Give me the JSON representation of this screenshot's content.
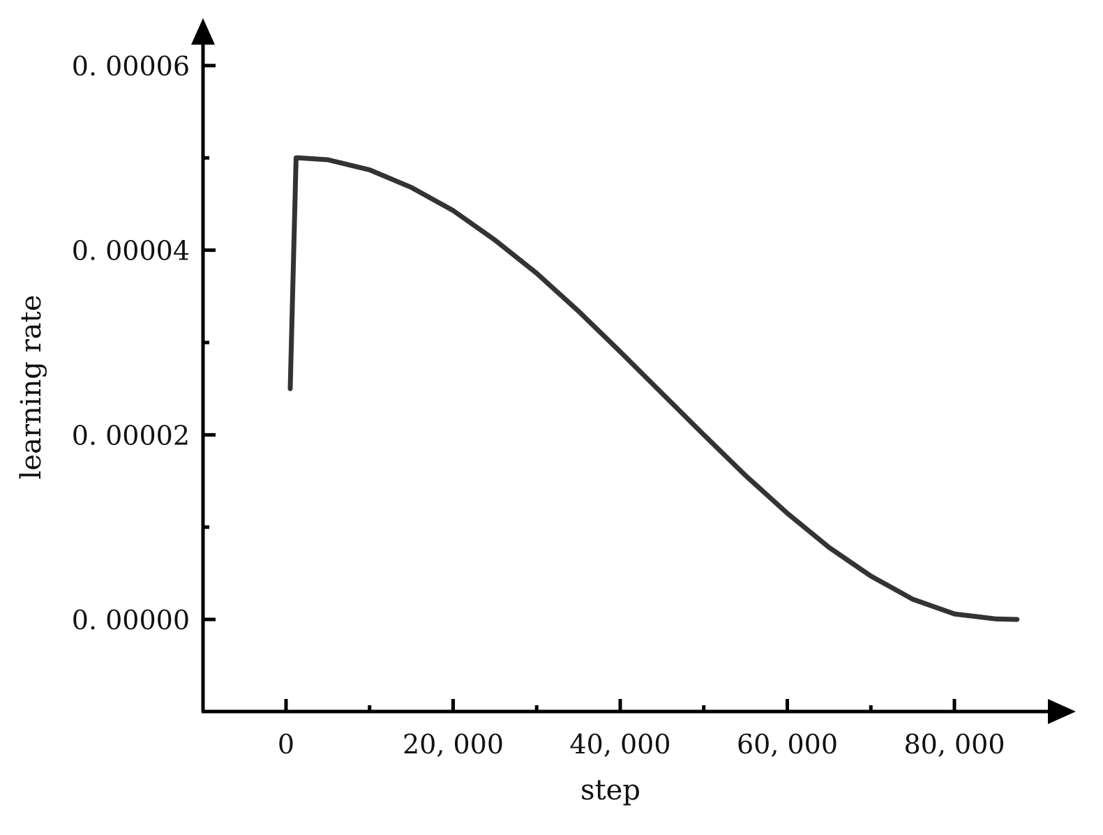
{
  "chart_data": {
    "type": "line",
    "title": "",
    "xlabel": "step",
    "ylabel": "learning rate",
    "xlim": [
      -10000,
      91000
    ],
    "ylim": [
      -1e-05,
      6.15e-05
    ],
    "x_ticks": [
      0,
      20000,
      40000,
      60000,
      80000
    ],
    "x_tick_labels": [
      "0",
      "20, 000",
      "40, 000",
      "60, 000",
      "80, 000"
    ],
    "x_minor_ticks": [
      10000,
      30000,
      50000,
      70000
    ],
    "y_ticks": [
      0,
      2e-05,
      4e-05,
      6e-05
    ],
    "y_tick_labels": [
      "0. 00000",
      "0. 00002",
      "0. 00004",
      "0. 00006"
    ],
    "y_minor_ticks": [
      1e-05,
      3e-05,
      5e-05
    ],
    "grid": false,
    "line_color": "#333333",
    "axis_color": "#000000",
    "series": [
      {
        "x": [
          500,
          1200,
          1500,
          5000,
          10000,
          15000,
          20000,
          25000,
          30000,
          35000,
          40000,
          45000,
          50000,
          55000,
          60000,
          65000,
          70000,
          75000,
          80000,
          85000,
          87500
        ],
        "values": [
          2.5e-05,
          5e-05,
          5e-05,
          4.98e-05,
          4.87e-05,
          4.68e-05,
          4.43e-05,
          4.11e-05,
          3.75e-05,
          3.34e-05,
          2.9e-05,
          2.45e-05,
          2e-05,
          1.56e-05,
          1.15e-05,
          7.8e-06,
          4.7e-06,
          2.2e-06,
          6e-07,
          5e-08,
          0.0
        ]
      }
    ]
  }
}
